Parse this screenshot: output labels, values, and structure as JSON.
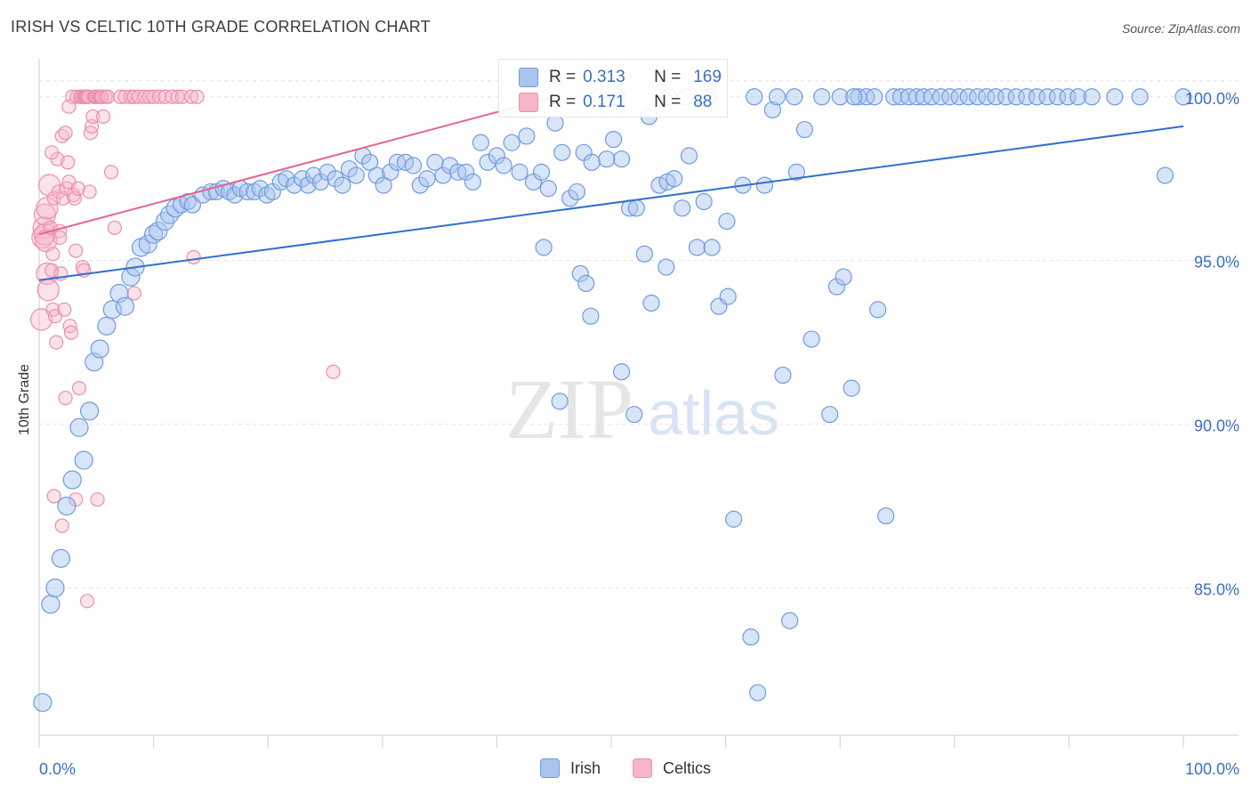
{
  "title": "IRISH VS CELTIC 10TH GRADE CORRELATION CHART",
  "source": "Source: ZipAtlas.com",
  "watermark": {
    "zip": "ZIP",
    "atlas": "atlas"
  },
  "stats": [
    {
      "r_label": "R =",
      "r_value": "0.313",
      "n_label": "N =",
      "n_value": "169",
      "color": "#a9c4ee"
    },
    {
      "r_label": "R =",
      "r_value": "0.171",
      "n_label": "N =",
      "n_value": "88",
      "color": "#f7b6c8"
    }
  ],
  "legend": [
    {
      "label": "Irish",
      "color": "#a9c4ee"
    },
    {
      "label": "Celtics",
      "color": "#f7b6c8"
    }
  ],
  "chart_data": {
    "type": "scatter",
    "title": "IRISH VS CELTIC 10TH GRADE CORRELATION CHART",
    "xlabel": "",
    "ylabel": "10th Grade",
    "xlim": [
      0,
      100
    ],
    "ylim": [
      80.5,
      101
    ],
    "x_tick_labels": [
      "0.0%",
      "100.0%"
    ],
    "y_ticks": [
      85,
      90,
      95,
      100
    ],
    "y_tick_labels": [
      "85.0%",
      "90.0%",
      "95.0%",
      "100.0%"
    ],
    "series": [
      {
        "name": "Irish",
        "color": "#6f9be0",
        "fill": "#a9c4ee",
        "trend": {
          "x": [
            0,
            100
          ],
          "y": [
            94.4,
            99.1
          ],
          "color": "#2f6fcf"
        },
        "points": [
          [
            0.3,
            81.5
          ],
          [
            1,
            84.5
          ],
          [
            1.4,
            85.0
          ],
          [
            1.9,
            85.9
          ],
          [
            2.4,
            87.5
          ],
          [
            2.9,
            88.3
          ],
          [
            3.5,
            89.9
          ],
          [
            3.9,
            88.9
          ],
          [
            4.4,
            90.4
          ],
          [
            4.8,
            91.9
          ],
          [
            5.3,
            92.3
          ],
          [
            5.9,
            93.0
          ],
          [
            6.4,
            93.5
          ],
          [
            7,
            94.0
          ],
          [
            7.5,
            93.6
          ],
          [
            8,
            94.5
          ],
          [
            8.4,
            94.8
          ],
          [
            8.9,
            95.4
          ],
          [
            9.5,
            95.5
          ],
          [
            10,
            95.8
          ],
          [
            10.4,
            95.9
          ],
          [
            11,
            96.2
          ],
          [
            11.4,
            96.4
          ],
          [
            11.9,
            96.6
          ],
          [
            12.4,
            96.7
          ],
          [
            13,
            96.8
          ],
          [
            13.4,
            96.7
          ],
          [
            14.3,
            97.0
          ],
          [
            15,
            97.1
          ],
          [
            15.5,
            97.1
          ],
          [
            16.1,
            97.2
          ],
          [
            16.6,
            97.1
          ],
          [
            17.1,
            97.0
          ],
          [
            17.6,
            97.2
          ],
          [
            18.2,
            97.1
          ],
          [
            18.8,
            97.1
          ],
          [
            19.3,
            97.2
          ],
          [
            19.9,
            97.0
          ],
          [
            20.4,
            97.1
          ],
          [
            21.1,
            97.4
          ],
          [
            21.6,
            97.5
          ],
          [
            22.3,
            97.3
          ],
          [
            23,
            97.5
          ],
          [
            23.5,
            97.3
          ],
          [
            24,
            97.6
          ],
          [
            24.6,
            97.4
          ],
          [
            25.2,
            97.7
          ],
          [
            25.9,
            97.5
          ],
          [
            26.5,
            97.3
          ],
          [
            27.1,
            97.8
          ],
          [
            27.7,
            97.6
          ],
          [
            28.3,
            98.2
          ],
          [
            28.9,
            98.0
          ],
          [
            29.5,
            97.6
          ],
          [
            30.1,
            97.3
          ],
          [
            30.7,
            97.7
          ],
          [
            31.3,
            98.0
          ],
          [
            32,
            98.0
          ],
          [
            32.7,
            97.9
          ],
          [
            33.3,
            97.3
          ],
          [
            33.9,
            97.5
          ],
          [
            34.6,
            98.0
          ],
          [
            35.3,
            97.6
          ],
          [
            35.9,
            97.9
          ],
          [
            36.6,
            97.7
          ],
          [
            37.3,
            97.7
          ],
          [
            37.9,
            97.4
          ],
          [
            38.6,
            98.6
          ],
          [
            39.2,
            98.0
          ],
          [
            40,
            98.2
          ],
          [
            40.6,
            97.9
          ],
          [
            41.3,
            98.6
          ],
          [
            42,
            97.7
          ],
          [
            42.6,
            98.8
          ],
          [
            43.2,
            97.4
          ],
          [
            43.9,
            97.7
          ],
          [
            44.5,
            97.2
          ],
          [
            45.1,
            99.2
          ],
          [
            45.7,
            98.3
          ],
          [
            46.4,
            96.9
          ],
          [
            47,
            97.1
          ],
          [
            47.6,
            98.3
          ],
          [
            48.3,
            98.0
          ],
          [
            49,
            100.0
          ],
          [
            49.6,
            98.1
          ],
          [
            50.2,
            98.7
          ],
          [
            50.9,
            98.1
          ],
          [
            51.6,
            96.6
          ],
          [
            52.2,
            96.6
          ],
          [
            52.9,
            95.2
          ],
          [
            53.5,
            93.7
          ],
          [
            54.2,
            97.3
          ],
          [
            54.9,
            97.4
          ],
          [
            55.5,
            97.5
          ],
          [
            56.2,
            96.6
          ],
          [
            56.8,
            98.2
          ],
          [
            57.5,
            95.4
          ],
          [
            58.1,
            96.8
          ],
          [
            58.8,
            95.4
          ],
          [
            59.4,
            93.6
          ],
          [
            60.1,
            96.2
          ],
          [
            60.7,
            87.1
          ],
          [
            61.5,
            97.3
          ],
          [
            62.2,
            83.5
          ],
          [
            62.8,
            81.8
          ],
          [
            63.4,
            97.3
          ],
          [
            64.1,
            99.6
          ],
          [
            65,
            91.5
          ],
          [
            65.6,
            84.0
          ],
          [
            66.2,
            97.7
          ],
          [
            66.9,
            99.0
          ],
          [
            67.5,
            92.6
          ],
          [
            68.4,
            100.0
          ],
          [
            69.1,
            90.3
          ],
          [
            69.7,
            94.2
          ],
          [
            70.3,
            94.5
          ],
          [
            71,
            91.1
          ],
          [
            71.6,
            100.0
          ],
          [
            72.3,
            100.0
          ],
          [
            73.3,
            93.5
          ],
          [
            74,
            87.2
          ],
          [
            74.7,
            100.0
          ],
          [
            75.3,
            100.0
          ],
          [
            76,
            100.0
          ],
          [
            76.7,
            100.0
          ],
          [
            77.3,
            100.0
          ],
          [
            78,
            100.0
          ],
          [
            78.8,
            100.0
          ],
          [
            79.6,
            100.0
          ],
          [
            80.4,
            100.0
          ],
          [
            81.2,
            100.0
          ],
          [
            82,
            100.0
          ],
          [
            82.8,
            100.0
          ],
          [
            83.6,
            100.0
          ],
          [
            84.5,
            100.0
          ],
          [
            85.4,
            100.0
          ],
          [
            86.3,
            100.0
          ],
          [
            87.2,
            100.0
          ],
          [
            88.1,
            100.0
          ],
          [
            89,
            100.0
          ],
          [
            89.9,
            100.0
          ],
          [
            90.8,
            100.0
          ],
          [
            92,
            100.0
          ],
          [
            94,
            100.0
          ],
          [
            96.2,
            100.0
          ],
          [
            98.4,
            97.6
          ],
          [
            100,
            100.0
          ],
          [
            66,
            100.0
          ],
          [
            70,
            100.0
          ],
          [
            62.5,
            100.0
          ],
          [
            64.5,
            100.0
          ],
          [
            58.5,
            100.0
          ],
          [
            56.5,
            100.0
          ],
          [
            55,
            100.0
          ],
          [
            53.3,
            99.4
          ],
          [
            50.5,
            100.0
          ],
          [
            71.2,
            100.0
          ],
          [
            73,
            100.0
          ],
          [
            48.2,
            93.3
          ],
          [
            47.3,
            94.6
          ],
          [
            52,
            90.3
          ],
          [
            50.9,
            91.6
          ],
          [
            54.8,
            94.8
          ],
          [
            44.1,
            95.4
          ],
          [
            45.5,
            90.7
          ],
          [
            47.8,
            94.3
          ],
          [
            60.2,
            93.9
          ]
        ]
      },
      {
        "name": "Celtics",
        "color": "#ec8fac",
        "fill": "#f7b6c8",
        "trend": {
          "x": [
            0,
            45
          ],
          "y": [
            95.8,
            100.0
          ],
          "color": "#e5658e"
        },
        "points": [
          [
            0.2,
            93.2
          ],
          [
            0.3,
            95.7
          ],
          [
            0.4,
            96.0
          ],
          [
            0.5,
            95.8
          ],
          [
            0.5,
            96.4
          ],
          [
            0.6,
            95.6
          ],
          [
            0.7,
            96.6
          ],
          [
            0.7,
            94.6
          ],
          [
            0.8,
            94.1
          ],
          [
            0.9,
            97.3
          ],
          [
            1,
            96.0
          ],
          [
            1.1,
            94.7
          ],
          [
            1.2,
            95.2
          ],
          [
            1.2,
            93.5
          ],
          [
            1.3,
            96.9
          ],
          [
            1.4,
            93.3
          ],
          [
            1.5,
            92.5
          ],
          [
            1.6,
            98.1
          ],
          [
            1.7,
            97.1
          ],
          [
            1.8,
            95.9
          ],
          [
            1.9,
            94.6
          ],
          [
            2,
            98.8
          ],
          [
            2.1,
            96.9
          ],
          [
            2.2,
            93.5
          ],
          [
            2.3,
            98.9
          ],
          [
            2.3,
            90.8
          ],
          [
            2.4,
            97.2
          ],
          [
            2.5,
            98.0
          ],
          [
            2.6,
            97.4
          ],
          [
            2.7,
            93.0
          ],
          [
            2.8,
            92.8
          ],
          [
            2.9,
            100.0
          ],
          [
            3,
            97.0
          ],
          [
            3.1,
            96.9
          ],
          [
            3.2,
            95.3
          ],
          [
            3.3,
            100.0
          ],
          [
            3.4,
            97.2
          ],
          [
            3.5,
            91.1
          ],
          [
            3.6,
            100.0
          ],
          [
            3.7,
            100.0
          ],
          [
            3.8,
            94.8
          ],
          [
            3.9,
            100.0
          ],
          [
            4,
            100.0
          ],
          [
            4.1,
            100.0
          ],
          [
            4.2,
            100.0
          ],
          [
            4.3,
            100.0
          ],
          [
            4.5,
            98.9
          ],
          [
            4.6,
            99.1
          ],
          [
            4.7,
            99.4
          ],
          [
            4.8,
            100.0
          ],
          [
            4.9,
            100.0
          ],
          [
            5,
            100.0
          ],
          [
            5.2,
            100.0
          ],
          [
            5.3,
            100.0
          ],
          [
            5.4,
            100.0
          ],
          [
            5.5,
            100.0
          ],
          [
            5.6,
            99.4
          ],
          [
            5.8,
            100.0
          ],
          [
            6,
            100.0
          ],
          [
            6.3,
            97.7
          ],
          [
            6.6,
            96.0
          ],
          [
            7.1,
            100.0
          ],
          [
            7.5,
            100.0
          ],
          [
            8,
            100.0
          ],
          [
            8.3,
            100.0
          ],
          [
            8.7,
            100.0
          ],
          [
            9.2,
            100.0
          ],
          [
            9.6,
            100.0
          ],
          [
            10,
            100.0
          ],
          [
            10.5,
            100.0
          ],
          [
            11,
            100.0
          ],
          [
            11.6,
            100.0
          ],
          [
            12.1,
            100.0
          ],
          [
            12.5,
            100.0
          ],
          [
            13.3,
            100.0
          ],
          [
            13.8,
            100.0
          ],
          [
            1.3,
            87.8
          ],
          [
            2,
            86.9
          ],
          [
            3.2,
            87.7
          ],
          [
            5.1,
            87.7
          ],
          [
            4.2,
            84.6
          ],
          [
            8.3,
            94.0
          ],
          [
            13.5,
            95.1
          ],
          [
            25.7,
            91.6
          ],
          [
            1.8,
            95.7
          ],
          [
            3.9,
            94.7
          ],
          [
            1.1,
            98.3
          ],
          [
            2.6,
            99.7
          ],
          [
            4.4,
            97.1
          ]
        ]
      }
    ]
  }
}
